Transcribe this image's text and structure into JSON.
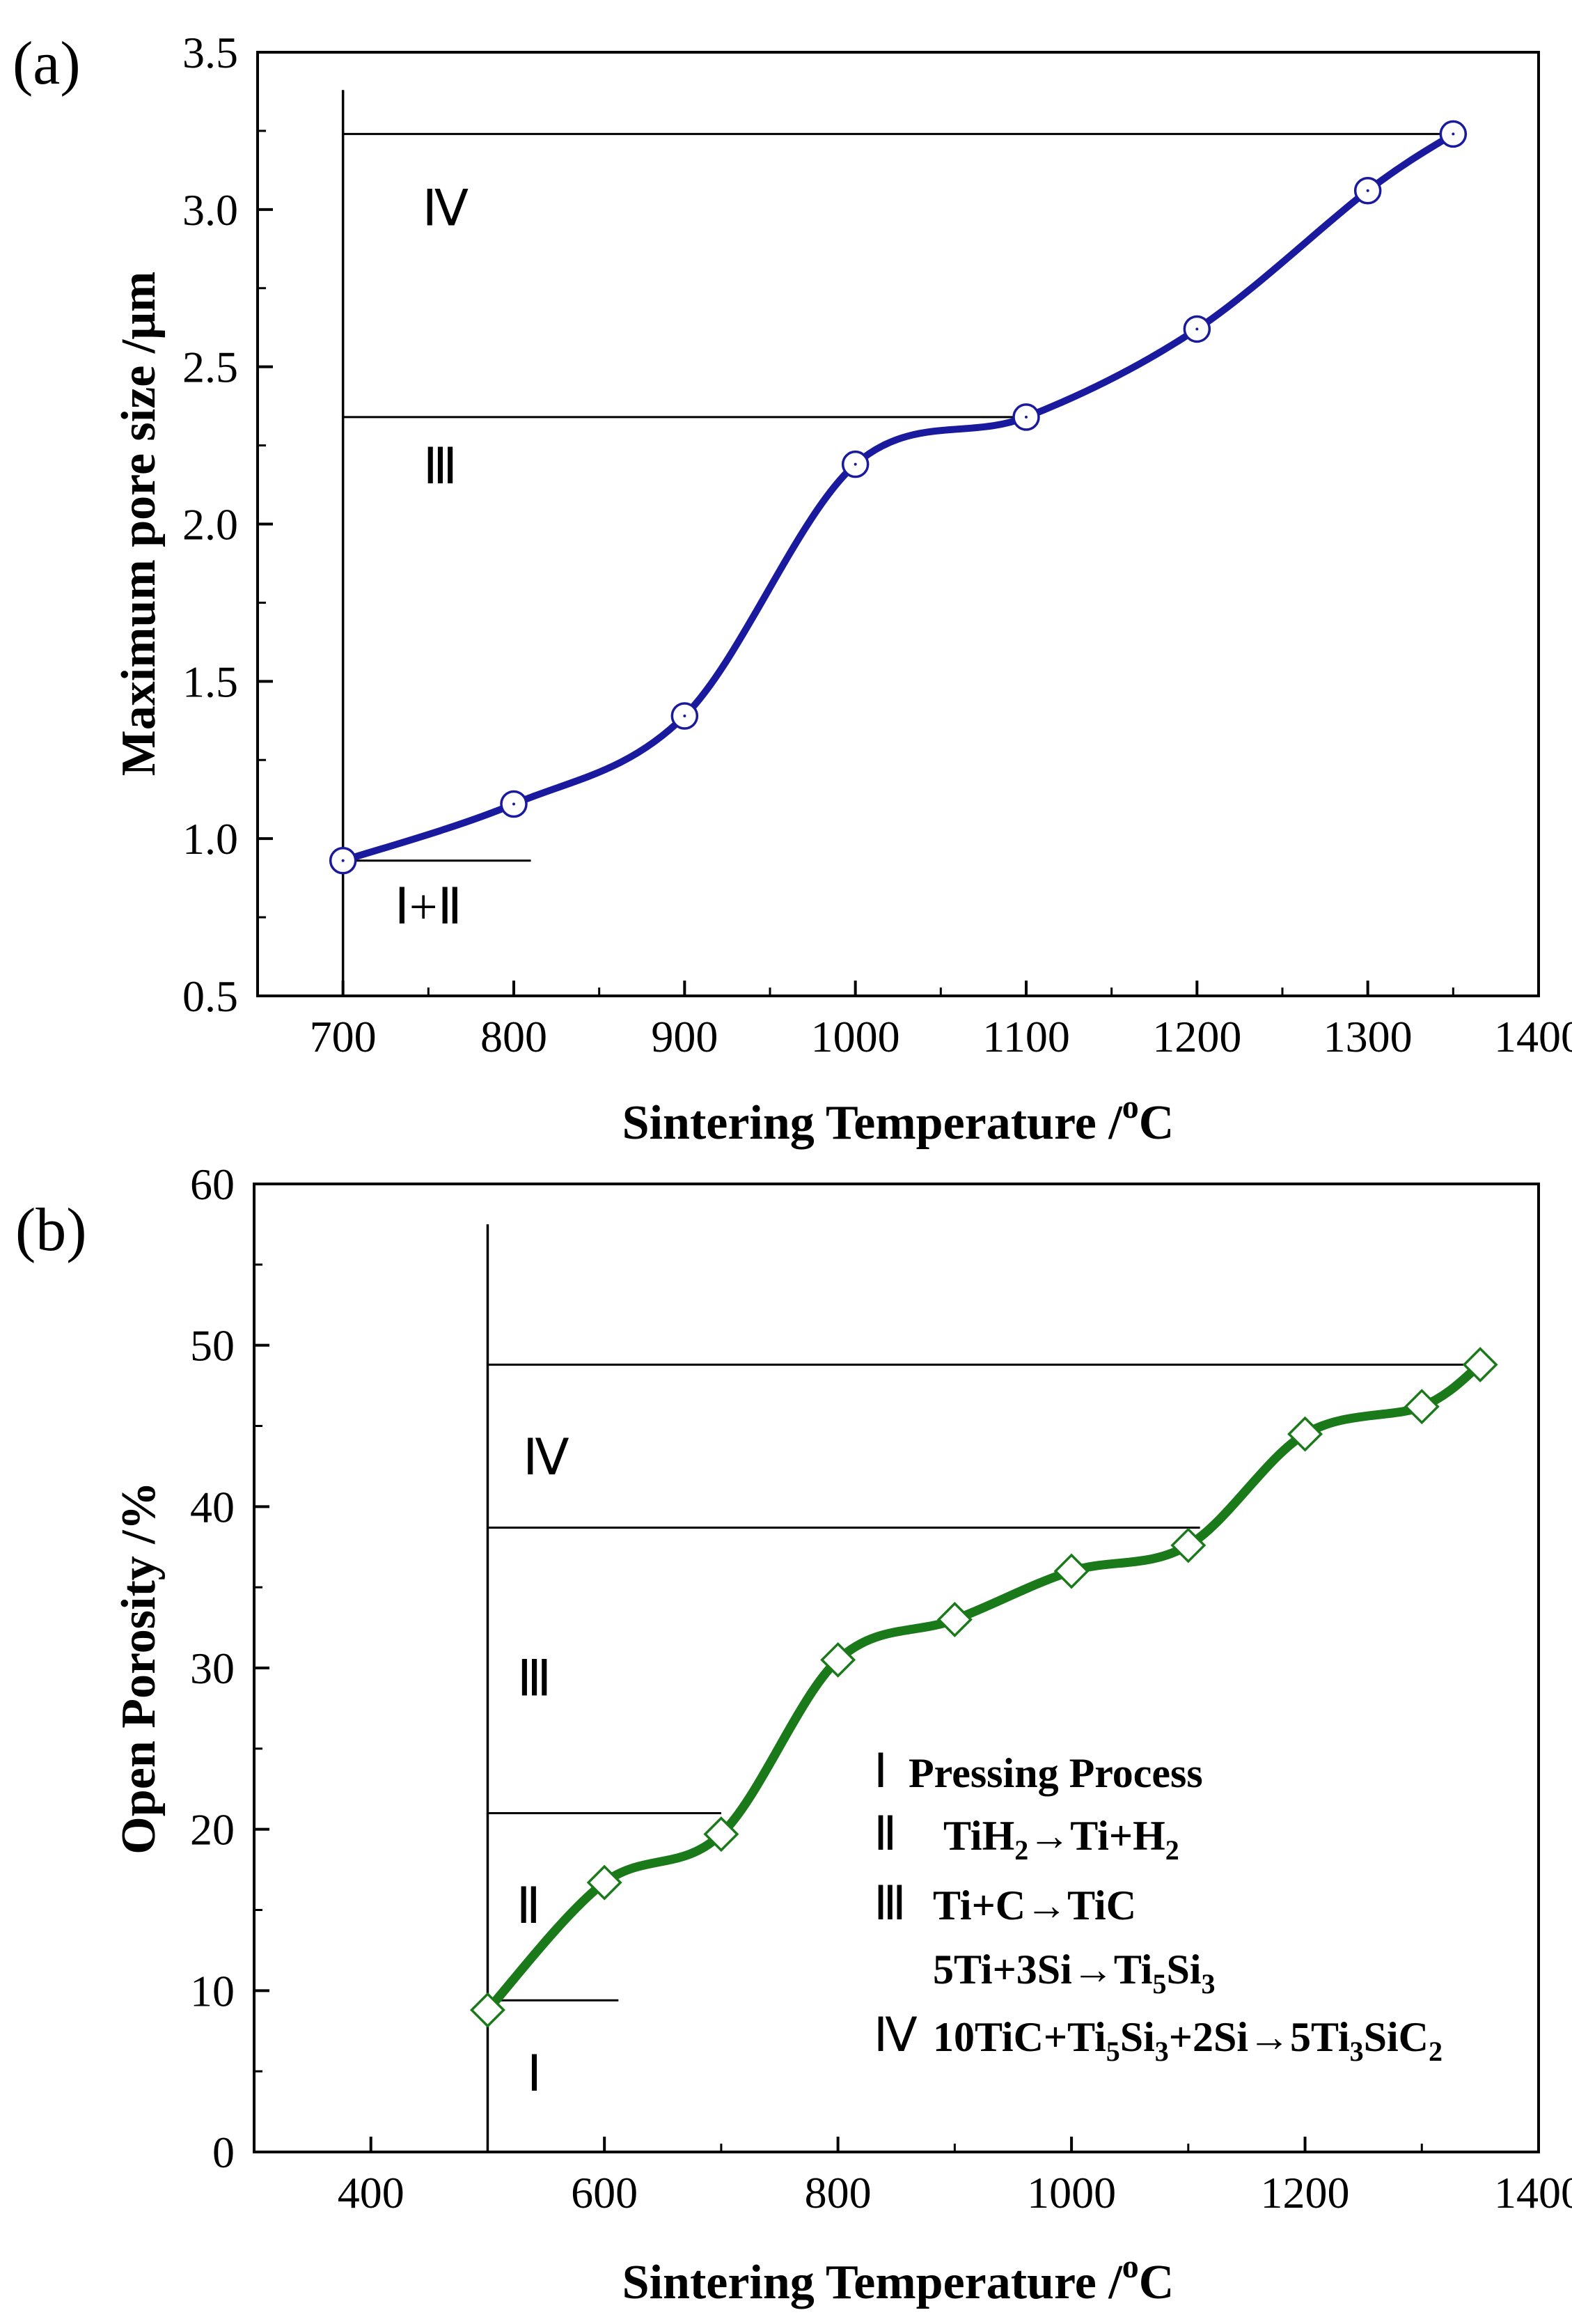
{
  "chart_data": [
    {
      "type": "line",
      "panel_label": "(a)",
      "xlabel": "Sintering Temperature /",
      "xlabel_sup": "o",
      "xlabel_unit": "C",
      "ylabel": "Maximum pore size /μm",
      "xlim": [
        650,
        1400
      ],
      "ylim": [
        0.5,
        3.5
      ],
      "xticks": [
        700,
        800,
        900,
        1000,
        1100,
        1200,
        1300,
        1400
      ],
      "yticks": [
        "0.5",
        "1.0",
        "1.5",
        "2.0",
        "2.5",
        "3.0",
        "3.5"
      ],
      "series": [
        {
          "name": "Maximum pore size",
          "color": "#1a1a9e",
          "marker": "circle",
          "x": [
            700,
            800,
            900,
            1000,
            1100,
            1200,
            1300,
            1350
          ],
          "y": [
            0.93,
            1.11,
            1.39,
            2.19,
            2.34,
            2.62,
            3.06,
            3.24
          ]
        }
      ],
      "reference_lines": [
        {
          "kind": "vertical",
          "x": 700,
          "y_from": 0.5,
          "y_to": 3.38
        },
        {
          "kind": "horizontal",
          "y": 3.24,
          "x_from": 700,
          "x_to": 1350
        },
        {
          "kind": "horizontal",
          "y": 2.34,
          "x_from": 700,
          "x_to": 1100
        },
        {
          "kind": "horizontal",
          "y": 0.93,
          "x_from": 700,
          "x_to": 810
        }
      ],
      "region_labels": [
        {
          "text": "Ⅳ",
          "x": 760,
          "y": 2.95
        },
        {
          "text": "Ⅲ",
          "x": 757,
          "y": 2.13
        },
        {
          "text": "Ⅰ+Ⅱ",
          "x": 750,
          "y": 0.73
        }
      ]
    },
    {
      "type": "line",
      "panel_label": "(b)",
      "xlabel": "Sintering Temperature /",
      "xlabel_sup": "o",
      "xlabel_unit": "C",
      "ylabel": "Open Porosity /%",
      "xlim": [
        300,
        1400
      ],
      "ylim": [
        0,
        60
      ],
      "xticks": [
        400,
        600,
        800,
        1000,
        1200,
        1400
      ],
      "yticks": [
        "0",
        "10",
        "20",
        "30",
        "40",
        "50",
        "60"
      ],
      "series": [
        {
          "name": "Open porosity",
          "color": "#1a7a1a",
          "marker": "diamond",
          "x": [
            500,
            600,
            700,
            800,
            900,
            1000,
            1100,
            1200,
            1300,
            1350
          ],
          "y": [
            8.8,
            16.7,
            19.7,
            30.5,
            33.0,
            36.0,
            37.6,
            44.5,
            46.2,
            48.8
          ]
        }
      ],
      "reference_lines": [
        {
          "kind": "vertical",
          "x": 500,
          "y_from": 0,
          "y_to": 57.5
        },
        {
          "kind": "horizontal",
          "y": 48.8,
          "x_from": 500,
          "x_to": 1350
        },
        {
          "kind": "horizontal",
          "y": 38.7,
          "x_from": 500,
          "x_to": 1110
        },
        {
          "kind": "horizontal",
          "y": 21.0,
          "x_from": 500,
          "x_to": 700
        },
        {
          "kind": "horizontal",
          "y": 9.4,
          "x_from": 500,
          "x_to": 612
        }
      ],
      "region_labels": [
        {
          "text": "Ⅳ",
          "x": 550,
          "y": 42
        },
        {
          "text": "Ⅲ",
          "x": 540,
          "y": 28.3
        },
        {
          "text": "Ⅱ",
          "x": 535,
          "y": 14.2
        },
        {
          "text": "Ⅰ",
          "x": 540,
          "y": 3.8
        }
      ],
      "legend": [
        {
          "numeral": "Ⅰ",
          "parts": [
            {
              "t": "Pressing Process"
            }
          ]
        },
        {
          "numeral": "Ⅱ",
          "parts": [
            {
              "t": "TiH"
            },
            {
              "t": "2",
              "sub": true
            },
            {
              "t": "→Ti+H"
            },
            {
              "t": "2",
              "sub": true
            }
          ]
        },
        {
          "numeral": "Ⅲ",
          "parts": [
            {
              "t": "Ti+C→TiC"
            }
          ]
        },
        {
          "numeral": "",
          "parts": [
            {
              "t": "5Ti+3Si→Ti"
            },
            {
              "t": "5",
              "sub": true
            },
            {
              "t": "Si"
            },
            {
              "t": "3",
              "sub": true
            }
          ]
        },
        {
          "numeral": "Ⅳ",
          "parts": [
            {
              "t": "10TiC+Ti"
            },
            {
              "t": "5",
              "sub": true
            },
            {
              "t": "Si"
            },
            {
              "t": "3",
              "sub": true
            },
            {
              "t": "+2Si→5Ti"
            },
            {
              "t": "3",
              "sub": true
            },
            {
              "t": "SiC"
            },
            {
              "t": "2",
              "sub": true
            }
          ]
        }
      ]
    }
  ]
}
